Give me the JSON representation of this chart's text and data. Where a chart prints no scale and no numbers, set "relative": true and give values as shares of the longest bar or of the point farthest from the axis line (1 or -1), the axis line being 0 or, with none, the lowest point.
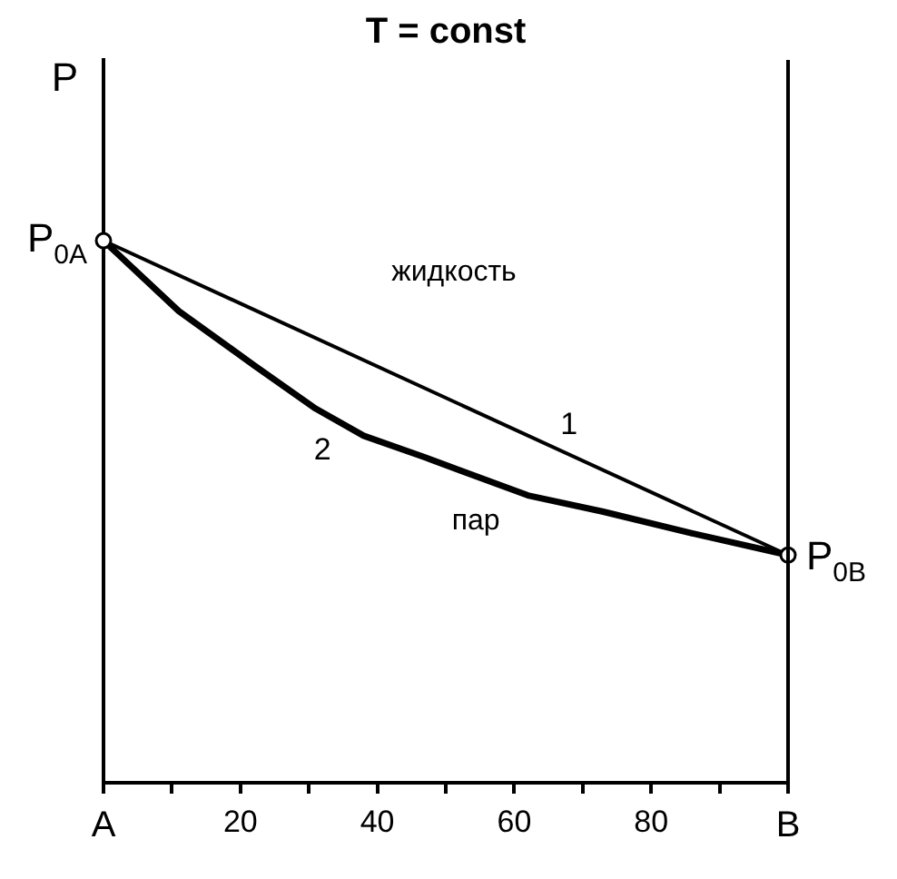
{
  "chart_data": {
    "type": "line",
    "title": "T = const",
    "ylabel": "P",
    "relative": true,
    "xlim": [
      0,
      100
    ],
    "xticks": [
      {
        "value": 0,
        "label": "A"
      },
      {
        "value": 10,
        "label": null
      },
      20,
      {
        "value": 30,
        "label": null
      },
      40,
      {
        "value": 50,
        "label": null
      },
      60,
      {
        "value": 70,
        "label": null
      },
      80,
      {
        "value": 90,
        "label": null
      },
      {
        "value": 100,
        "label": "B"
      }
    ],
    "series": [
      {
        "name": "1",
        "color": "#000000",
        "marker": "circle",
        "x": [
          0,
          100
        ],
        "values": [
          1,
          0.42
        ]
      },
      {
        "name": "2",
        "color": "#000000",
        "marker": "none",
        "x": [
          0,
          11,
          22,
          31,
          38,
          47,
          62,
          73,
          86,
          100
        ],
        "values": [
          1,
          0.87,
          0.77,
          0.69,
          0.64,
          0.6,
          0.53,
          0.5,
          0.46,
          0.42
        ]
      }
    ],
    "annotations": [
      {
        "text": "P$_{0A}$",
        "x": 0,
        "y": 1
      },
      {
        "text": "P$_{0B}$",
        "x": 100,
        "y": 0.42
      },
      "жидкость",
      "пар"
    ],
    "grid": false,
    "legend": false
  }
}
